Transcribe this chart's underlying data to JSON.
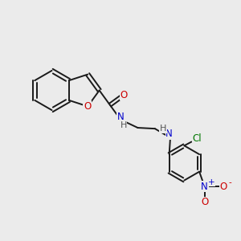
{
  "background_color": "#ebebeb",
  "bond_color": "#1a1a1a",
  "atom_colors": {
    "O": "#cc0000",
    "N": "#0000cc",
    "Cl": "#007700",
    "H": "#555555"
  },
  "figsize": [
    3.0,
    3.0
  ],
  "dpi": 100
}
